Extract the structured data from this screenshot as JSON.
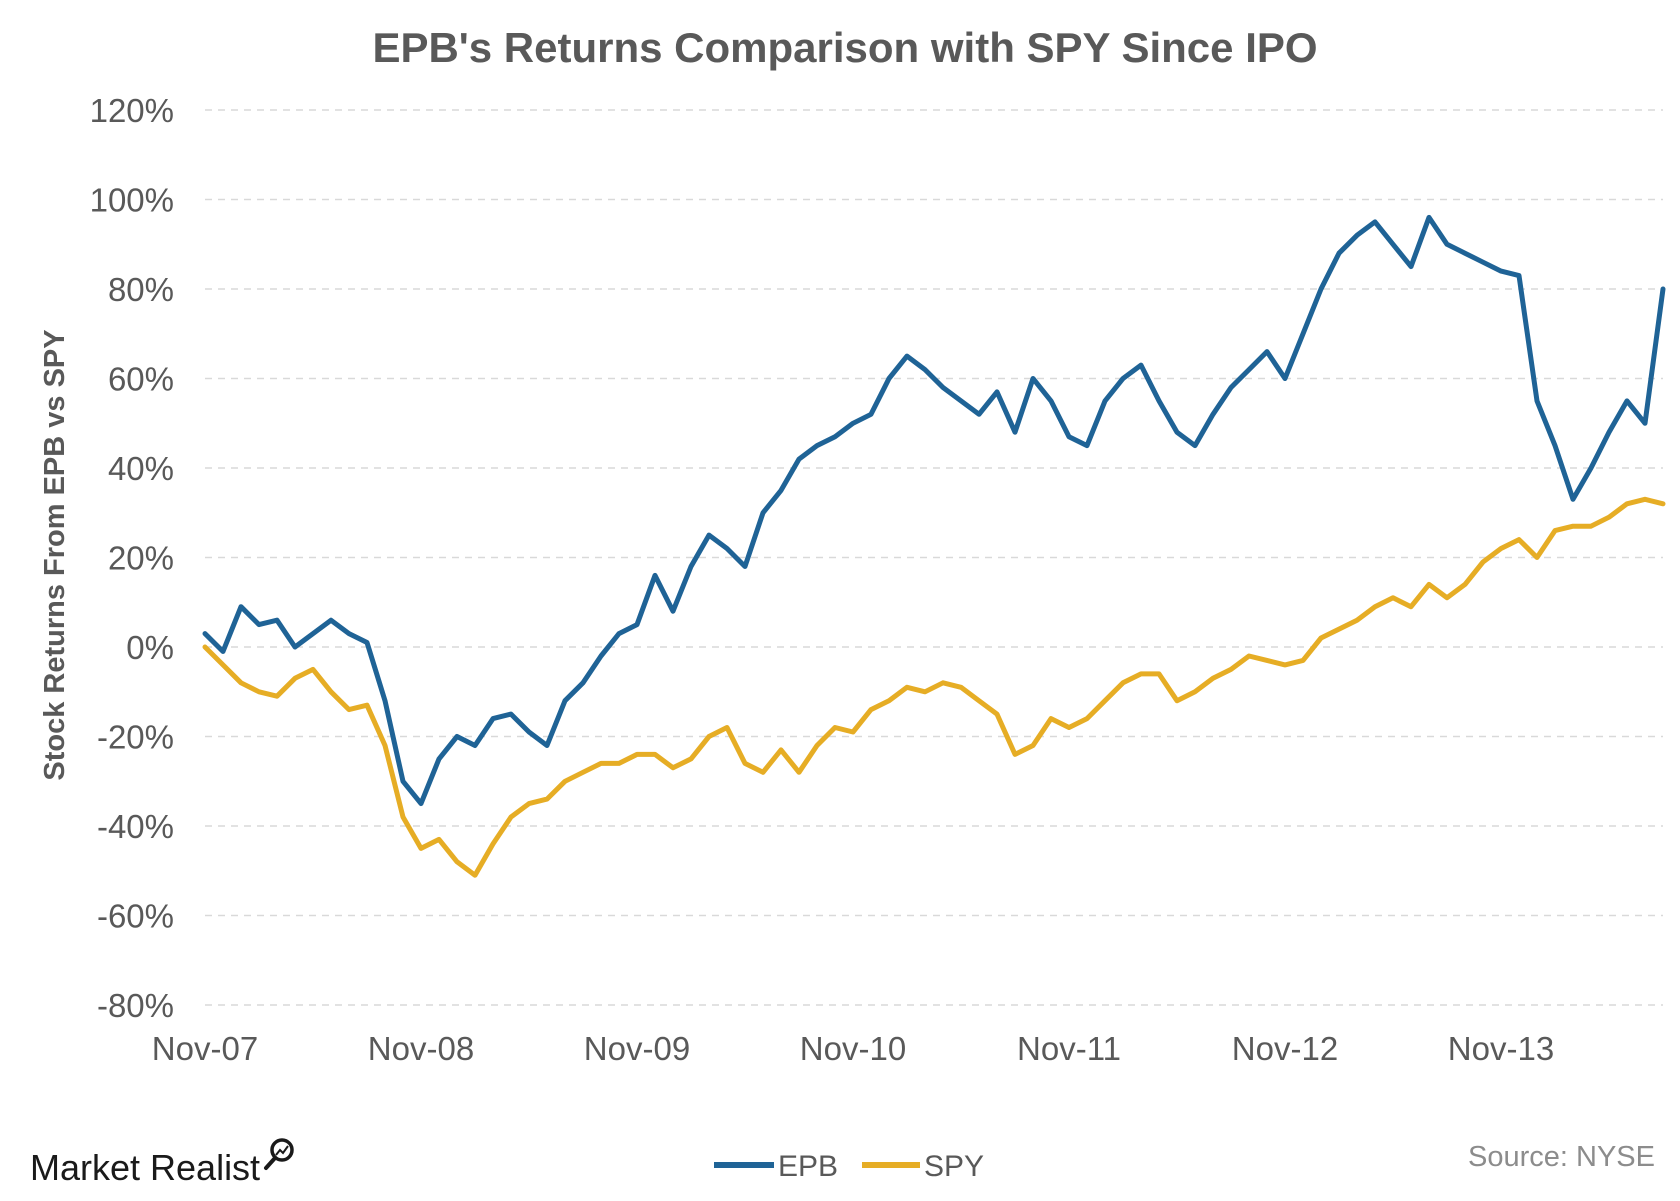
{
  "brand": {
    "name": "Market Realist"
  },
  "source": "Source: NYSE",
  "colors": {
    "EPB": "#1f6396",
    "SPY": "#e6ad25",
    "grid": "#d9d9d9",
    "text": "#595959"
  },
  "chart_data": {
    "type": "line",
    "title": "EPB's Returns Comparison with SPY Since IPO",
    "xlabel": "",
    "ylabel": "Stock Returns From EPB vs SPY",
    "ylim": [
      -80,
      120
    ],
    "xlim": [
      "2007-11",
      "2014-08"
    ],
    "y_ticks": [
      120,
      100,
      80,
      60,
      40,
      20,
      0,
      -20,
      -40,
      -60,
      -80
    ],
    "y_tick_labels": [
      "120%",
      "100%",
      "80%",
      "60%",
      "40%",
      "20%",
      "0%",
      "-20%",
      "-40%",
      "-60%",
      "-80%"
    ],
    "x_ticks": [
      "2007-11",
      "2008-11",
      "2009-11",
      "2010-11",
      "2011-11",
      "2012-11",
      "2013-11"
    ],
    "x_tick_labels": [
      "Nov-07",
      "Nov-08",
      "Nov-09",
      "Nov-10",
      "Nov-11",
      "Nov-12",
      "Nov-13"
    ],
    "grid": true,
    "legend": {
      "position": "bottom-center"
    },
    "series": [
      {
        "name": "EPB",
        "points": [
          [
            "2007-11",
            3
          ],
          [
            "2007-12",
            -1
          ],
          [
            "2008-01",
            9
          ],
          [
            "2008-02",
            5
          ],
          [
            "2008-03",
            6
          ],
          [
            "2008-04",
            0
          ],
          [
            "2008-05",
            3
          ],
          [
            "2008-06",
            6
          ],
          [
            "2008-07",
            3
          ],
          [
            "2008-08",
            1
          ],
          [
            "2008-09",
            -12
          ],
          [
            "2008-10",
            -30
          ],
          [
            "2008-11",
            -35
          ],
          [
            "2008-12",
            -25
          ],
          [
            "2009-01",
            -20
          ],
          [
            "2009-02",
            -22
          ],
          [
            "2009-03",
            -16
          ],
          [
            "2009-04",
            -15
          ],
          [
            "2009-05",
            -19
          ],
          [
            "2009-06",
            -22
          ],
          [
            "2009-07",
            -12
          ],
          [
            "2009-08",
            -8
          ],
          [
            "2009-09",
            -2
          ],
          [
            "2009-10",
            3
          ],
          [
            "2009-11",
            5
          ],
          [
            "2009-12",
            16
          ],
          [
            "2010-01",
            8
          ],
          [
            "2010-02",
            18
          ],
          [
            "2010-03",
            25
          ],
          [
            "2010-04",
            22
          ],
          [
            "2010-05",
            18
          ],
          [
            "2010-06",
            30
          ],
          [
            "2010-07",
            35
          ],
          [
            "2010-08",
            42
          ],
          [
            "2010-09",
            45
          ],
          [
            "2010-10",
            47
          ],
          [
            "2010-11",
            50
          ],
          [
            "2010-12",
            52
          ],
          [
            "2011-01",
            60
          ],
          [
            "2011-02",
            65
          ],
          [
            "2011-03",
            62
          ],
          [
            "2011-04",
            58
          ],
          [
            "2011-05",
            55
          ],
          [
            "2011-06",
            52
          ],
          [
            "2011-07",
            57
          ],
          [
            "2011-08",
            48
          ],
          [
            "2011-09",
            60
          ],
          [
            "2011-10",
            55
          ],
          [
            "2011-11",
            47
          ],
          [
            "2011-12",
            45
          ],
          [
            "2012-01",
            55
          ],
          [
            "2012-02",
            60
          ],
          [
            "2012-03",
            63
          ],
          [
            "2012-04",
            55
          ],
          [
            "2012-05",
            48
          ],
          [
            "2012-06",
            45
          ],
          [
            "2012-07",
            52
          ],
          [
            "2012-08",
            58
          ],
          [
            "2012-09",
            62
          ],
          [
            "2012-10",
            66
          ],
          [
            "2012-11",
            60
          ],
          [
            "2012-12",
            70
          ],
          [
            "2013-01",
            80
          ],
          [
            "2013-02",
            88
          ],
          [
            "2013-03",
            92
          ],
          [
            "2013-04",
            95
          ],
          [
            "2013-05",
            90
          ],
          [
            "2013-06",
            85
          ],
          [
            "2013-07",
            96
          ],
          [
            "2013-08",
            90
          ],
          [
            "2013-09",
            88
          ],
          [
            "2013-10",
            86
          ],
          [
            "2013-11",
            84
          ],
          [
            "2013-12",
            83
          ],
          [
            "2014-01",
            55
          ],
          [
            "2014-02",
            45
          ],
          [
            "2014-03",
            33
          ],
          [
            "2014-04",
            40
          ],
          [
            "2014-05",
            48
          ],
          [
            "2014-06",
            55
          ],
          [
            "2014-07",
            50
          ],
          [
            "2014-08",
            80
          ]
        ]
      },
      {
        "name": "SPY",
        "points": [
          [
            "2007-11",
            0
          ],
          [
            "2007-12",
            -4
          ],
          [
            "2008-01",
            -8
          ],
          [
            "2008-02",
            -10
          ],
          [
            "2008-03",
            -11
          ],
          [
            "2008-04",
            -7
          ],
          [
            "2008-05",
            -5
          ],
          [
            "2008-06",
            -10
          ],
          [
            "2008-07",
            -14
          ],
          [
            "2008-08",
            -13
          ],
          [
            "2008-09",
            -22
          ],
          [
            "2008-10",
            -38
          ],
          [
            "2008-11",
            -45
          ],
          [
            "2008-12",
            -43
          ],
          [
            "2009-01",
            -48
          ],
          [
            "2009-02",
            -51
          ],
          [
            "2009-03",
            -44
          ],
          [
            "2009-04",
            -38
          ],
          [
            "2009-05",
            -35
          ],
          [
            "2009-06",
            -34
          ],
          [
            "2009-07",
            -30
          ],
          [
            "2009-08",
            -28
          ],
          [
            "2009-09",
            -26
          ],
          [
            "2009-10",
            -26
          ],
          [
            "2009-11",
            -24
          ],
          [
            "2009-12",
            -24
          ],
          [
            "2010-01",
            -27
          ],
          [
            "2010-02",
            -25
          ],
          [
            "2010-03",
            -20
          ],
          [
            "2010-04",
            -18
          ],
          [
            "2010-05",
            -26
          ],
          [
            "2010-06",
            -28
          ],
          [
            "2010-07",
            -23
          ],
          [
            "2010-08",
            -28
          ],
          [
            "2010-09",
            -22
          ],
          [
            "2010-10",
            -18
          ],
          [
            "2010-11",
            -19
          ],
          [
            "2010-12",
            -14
          ],
          [
            "2011-01",
            -12
          ],
          [
            "2011-02",
            -9
          ],
          [
            "2011-03",
            -10
          ],
          [
            "2011-04",
            -8
          ],
          [
            "2011-05",
            -9
          ],
          [
            "2011-06",
            -12
          ],
          [
            "2011-07",
            -15
          ],
          [
            "2011-08",
            -24
          ],
          [
            "2011-09",
            -22
          ],
          [
            "2011-10",
            -16
          ],
          [
            "2011-11",
            -18
          ],
          [
            "2011-12",
            -16
          ],
          [
            "2012-01",
            -12
          ],
          [
            "2012-02",
            -8
          ],
          [
            "2012-03",
            -6
          ],
          [
            "2012-04",
            -6
          ],
          [
            "2012-05",
            -12
          ],
          [
            "2012-06",
            -10
          ],
          [
            "2012-07",
            -7
          ],
          [
            "2012-08",
            -5
          ],
          [
            "2012-09",
            -2
          ],
          [
            "2012-10",
            -3
          ],
          [
            "2012-11",
            -4
          ],
          [
            "2012-12",
            -3
          ],
          [
            "2013-01",
            2
          ],
          [
            "2013-02",
            4
          ],
          [
            "2013-03",
            6
          ],
          [
            "2013-04",
            9
          ],
          [
            "2013-05",
            11
          ],
          [
            "2013-06",
            9
          ],
          [
            "2013-07",
            14
          ],
          [
            "2013-08",
            11
          ],
          [
            "2013-09",
            14
          ],
          [
            "2013-10",
            19
          ],
          [
            "2013-11",
            22
          ],
          [
            "2013-12",
            24
          ],
          [
            "2014-01",
            20
          ],
          [
            "2014-02",
            26
          ],
          [
            "2014-03",
            27
          ],
          [
            "2014-04",
            27
          ],
          [
            "2014-05",
            29
          ],
          [
            "2014-06",
            32
          ],
          [
            "2014-07",
            33
          ],
          [
            "2014-08",
            32
          ]
        ]
      }
    ]
  }
}
